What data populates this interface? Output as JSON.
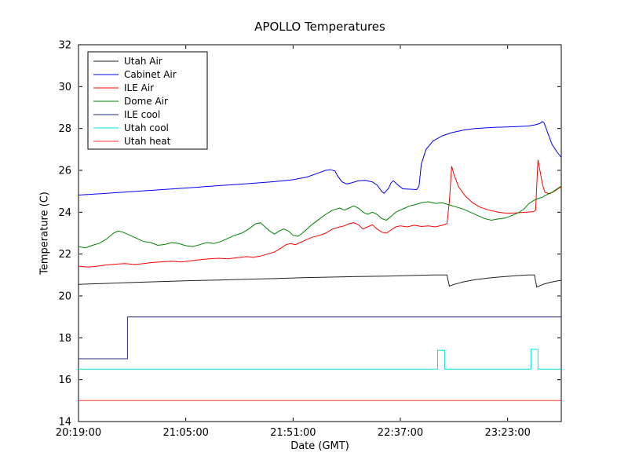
{
  "chart_data": {
    "type": "line",
    "title": "APOLLO Temperatures",
    "xlabel": "Date (GMT)",
    "ylabel": "Temperature (C)",
    "x_unit": "minutes after 20:19:00 GMT",
    "xlim": [
      0,
      207
    ],
    "ylim": [
      14,
      32
    ],
    "yticks": [
      14,
      16,
      18,
      20,
      22,
      24,
      26,
      28,
      30,
      32
    ],
    "xticks": [
      {
        "pos": 0,
        "label": "20:19:00"
      },
      {
        "pos": 46,
        "label": "21:05:00"
      },
      {
        "pos": 92,
        "label": "21:51:00"
      },
      {
        "pos": 138,
        "label": "22:37:00"
      },
      {
        "pos": 184,
        "label": "23:23:00"
      }
    ],
    "grid": false,
    "legend": {
      "position": "upper-left",
      "entries": [
        "Utah Air",
        "Cabinet Air",
        "ILE Air",
        "Dome Air",
        "ILE cool",
        "Utah cool",
        "Utah heat"
      ]
    },
    "colors": {
      "background": "#ffffff",
      "axes": "#000000"
    },
    "series": [
      {
        "name": "Utah Air",
        "color": "#222222",
        "points": [
          [
            0,
            20.55
          ],
          [
            12,
            20.6
          ],
          [
            24,
            20.65
          ],
          [
            36,
            20.69
          ],
          [
            48,
            20.73
          ],
          [
            60,
            20.76
          ],
          [
            72,
            20.8
          ],
          [
            84,
            20.83
          ],
          [
            96,
            20.87
          ],
          [
            108,
            20.9
          ],
          [
            120,
            20.93
          ],
          [
            132,
            20.95
          ],
          [
            144,
            20.98
          ],
          [
            152,
            21.0
          ],
          [
            158,
            21.0
          ],
          [
            159,
            20.47
          ],
          [
            161,
            20.55
          ],
          [
            165,
            20.67
          ],
          [
            170,
            20.78
          ],
          [
            176,
            20.86
          ],
          [
            182,
            20.92
          ],
          [
            188,
            20.97
          ],
          [
            193,
            21.0
          ],
          [
            195.5,
            21.0
          ],
          [
            196.5,
            20.42
          ],
          [
            198,
            20.5
          ],
          [
            200,
            20.58
          ],
          [
            202,
            20.64
          ],
          [
            204,
            20.69
          ],
          [
            207,
            20.75
          ]
        ]
      },
      {
        "name": "Cabinet Air",
        "color": "#0000ee",
        "points": [
          [
            0,
            24.82
          ],
          [
            12,
            24.9
          ],
          [
            24,
            24.99
          ],
          [
            36,
            25.08
          ],
          [
            48,
            25.17
          ],
          [
            60,
            25.27
          ],
          [
            72,
            25.36
          ],
          [
            84,
            25.46
          ],
          [
            92,
            25.55
          ],
          [
            98,
            25.68
          ],
          [
            103,
            25.88
          ],
          [
            106,
            26.0
          ],
          [
            108,
            26.03
          ],
          [
            110,
            25.97
          ],
          [
            111,
            25.75
          ],
          [
            113,
            25.45
          ],
          [
            115,
            25.35
          ],
          [
            117,
            25.4
          ],
          [
            120,
            25.5
          ],
          [
            123,
            25.52
          ],
          [
            126,
            25.45
          ],
          [
            128,
            25.3
          ],
          [
            130,
            25.0
          ],
          [
            131,
            24.9
          ],
          [
            133,
            25.15
          ],
          [
            134,
            25.4
          ],
          [
            135,
            25.5
          ],
          [
            137,
            25.3
          ],
          [
            139,
            25.12
          ],
          [
            142,
            25.1
          ],
          [
            145,
            25.08
          ],
          [
            146,
            25.25
          ],
          [
            147,
            26.3
          ],
          [
            149,
            27.0
          ],
          [
            152,
            27.4
          ],
          [
            156,
            27.65
          ],
          [
            160,
            27.8
          ],
          [
            165,
            27.92
          ],
          [
            170,
            28.0
          ],
          [
            178,
            28.05
          ],
          [
            186,
            28.08
          ],
          [
            193,
            28.12
          ],
          [
            196,
            28.18
          ],
          [
            198,
            28.25
          ],
          [
            198.8,
            28.33
          ],
          [
            199.6,
            28.28
          ],
          [
            201,
            27.85
          ],
          [
            203,
            27.25
          ],
          [
            205,
            26.9
          ],
          [
            207,
            26.62
          ]
        ]
      },
      {
        "name": "ILE Air",
        "color": "#ff0000",
        "points": [
          [
            0,
            21.42
          ],
          [
            4,
            21.38
          ],
          [
            8,
            21.42
          ],
          [
            12,
            21.48
          ],
          [
            16,
            21.52
          ],
          [
            20,
            21.55
          ],
          [
            24,
            21.5
          ],
          [
            28,
            21.55
          ],
          [
            32,
            21.6
          ],
          [
            36,
            21.63
          ],
          [
            40,
            21.66
          ],
          [
            44,
            21.62
          ],
          [
            48,
            21.68
          ],
          [
            52,
            21.73
          ],
          [
            56,
            21.77
          ],
          [
            60,
            21.8
          ],
          [
            64,
            21.77
          ],
          [
            68,
            21.83
          ],
          [
            72,
            21.88
          ],
          [
            75,
            21.85
          ],
          [
            78,
            21.9
          ],
          [
            81,
            22.0
          ],
          [
            84,
            22.1
          ],
          [
            87,
            22.3
          ],
          [
            89,
            22.45
          ],
          [
            91,
            22.5
          ],
          [
            93,
            22.45
          ],
          [
            95,
            22.55
          ],
          [
            97,
            22.65
          ],
          [
            100,
            22.8
          ],
          [
            103,
            22.88
          ],
          [
            106,
            23.0
          ],
          [
            109,
            23.2
          ],
          [
            112,
            23.3
          ],
          [
            114,
            23.35
          ],
          [
            116,
            23.45
          ],
          [
            118,
            23.5
          ],
          [
            120,
            23.4
          ],
          [
            122,
            23.2
          ],
          [
            124,
            23.3
          ],
          [
            126,
            23.4
          ],
          [
            128,
            23.2
          ],
          [
            130,
            23.05
          ],
          [
            132,
            23.0
          ],
          [
            134,
            23.15
          ],
          [
            136,
            23.3
          ],
          [
            138,
            23.35
          ],
          [
            141,
            23.3
          ],
          [
            144,
            23.38
          ],
          [
            147,
            23.32
          ],
          [
            150,
            23.35
          ],
          [
            153,
            23.3
          ],
          [
            156,
            23.38
          ],
          [
            158,
            23.45
          ],
          [
            159,
            24.5
          ],
          [
            160,
            26.2
          ],
          [
            161,
            25.8
          ],
          [
            163,
            25.2
          ],
          [
            166,
            24.75
          ],
          [
            169,
            24.45
          ],
          [
            172,
            24.25
          ],
          [
            176,
            24.1
          ],
          [
            180,
            24.0
          ],
          [
            184,
            23.95
          ],
          [
            188,
            23.97
          ],
          [
            192,
            24.0
          ],
          [
            195,
            24.02
          ],
          [
            196,
            24.1
          ],
          [
            197,
            26.5
          ],
          [
            198,
            25.9
          ],
          [
            199,
            25.3
          ],
          [
            200,
            24.95
          ],
          [
            202,
            24.88
          ],
          [
            204,
            25.0
          ],
          [
            206,
            25.15
          ],
          [
            207,
            25.2
          ]
        ]
      },
      {
        "name": "Dome Air",
        "color": "#008000",
        "points": [
          [
            0,
            22.35
          ],
          [
            3,
            22.3
          ],
          [
            6,
            22.42
          ],
          [
            9,
            22.52
          ],
          [
            12,
            22.72
          ],
          [
            15,
            23.0
          ],
          [
            17,
            23.1
          ],
          [
            19,
            23.05
          ],
          [
            22,
            22.9
          ],
          [
            25,
            22.75
          ],
          [
            28,
            22.6
          ],
          [
            31,
            22.55
          ],
          [
            34,
            22.42
          ],
          [
            37,
            22.46
          ],
          [
            40,
            22.55
          ],
          [
            43,
            22.5
          ],
          [
            46,
            22.4
          ],
          [
            49,
            22.36
          ],
          [
            52,
            22.45
          ],
          [
            55,
            22.55
          ],
          [
            58,
            22.5
          ],
          [
            61,
            22.6
          ],
          [
            64,
            22.75
          ],
          [
            67,
            22.9
          ],
          [
            70,
            23.0
          ],
          [
            73,
            23.2
          ],
          [
            76,
            23.45
          ],
          [
            78,
            23.5
          ],
          [
            80,
            23.3
          ],
          [
            82,
            23.1
          ],
          [
            84,
            22.95
          ],
          [
            86,
            23.1
          ],
          [
            88,
            23.2
          ],
          [
            90,
            23.1
          ],
          [
            92,
            22.9
          ],
          [
            94,
            22.85
          ],
          [
            96,
            23.0
          ],
          [
            98,
            23.2
          ],
          [
            100,
            23.4
          ],
          [
            103,
            23.65
          ],
          [
            106,
            23.9
          ],
          [
            109,
            24.1
          ],
          [
            112,
            24.2
          ],
          [
            114,
            24.1
          ],
          [
            116,
            24.2
          ],
          [
            118,
            24.3
          ],
          [
            120,
            24.2
          ],
          [
            122,
            24.0
          ],
          [
            124,
            23.9
          ],
          [
            126,
            24.0
          ],
          [
            128,
            23.9
          ],
          [
            130,
            23.7
          ],
          [
            132,
            23.62
          ],
          [
            134,
            23.8
          ],
          [
            136,
            24.0
          ],
          [
            138,
            24.1
          ],
          [
            140,
            24.2
          ],
          [
            142,
            24.3
          ],
          [
            144,
            24.35
          ],
          [
            147,
            24.45
          ],
          [
            150,
            24.5
          ],
          [
            153,
            24.42
          ],
          [
            156,
            24.45
          ],
          [
            159,
            24.35
          ],
          [
            162,
            24.25
          ],
          [
            165,
            24.15
          ],
          [
            168,
            24.0
          ],
          [
            171,
            23.85
          ],
          [
            174,
            23.7
          ],
          [
            177,
            23.62
          ],
          [
            180,
            23.68
          ],
          [
            183,
            23.72
          ],
          [
            186,
            23.85
          ],
          [
            189,
            24.0
          ],
          [
            191,
            24.15
          ],
          [
            193,
            24.4
          ],
          [
            195,
            24.55
          ],
          [
            197,
            24.65
          ],
          [
            199,
            24.72
          ],
          [
            201,
            24.85
          ],
          [
            203,
            24.95
          ],
          [
            205,
            25.1
          ],
          [
            207,
            25.25
          ]
        ]
      },
      {
        "name": "ILE cool",
        "color": "#2a2a80",
        "points": [
          [
            0,
            17.0
          ],
          [
            21,
            17.0
          ],
          [
            21,
            19.0
          ],
          [
            207,
            19.0
          ]
        ]
      },
      {
        "name": "Utah cool",
        "color": "#00e5e5",
        "points": [
          [
            0,
            16.5
          ],
          [
            154,
            16.5
          ],
          [
            154,
            17.4
          ],
          [
            157,
            17.4
          ],
          [
            157,
            16.5
          ],
          [
            194,
            16.5
          ],
          [
            194,
            17.45
          ],
          [
            197,
            17.45
          ],
          [
            197,
            16.5
          ],
          [
            207,
            16.5
          ]
        ]
      },
      {
        "name": "Utah heat",
        "color": "#ff3333",
        "points": [
          [
            0,
            15.0
          ],
          [
            207,
            15.0
          ]
        ]
      }
    ]
  }
}
